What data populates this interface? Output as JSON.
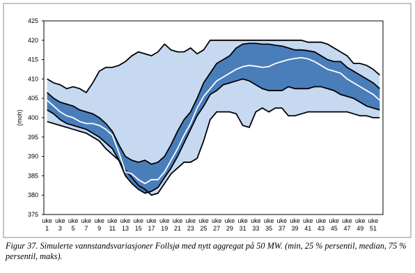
{
  "chart_data": {
    "type": "band",
    "caption": "Figur 37. Simulerte vannstandsvariasjoner Follsjø med nytt aggregat på 50 MW. (min, 25 % persentil, median, 75 % persentil, maks).",
    "ylabel": "(moh)",
    "categories": [
      "uke 1",
      null,
      "uke 3",
      null,
      "uke 5",
      null,
      "uke 7",
      null,
      "uke 9",
      null,
      "uke 11",
      null,
      "uke 13",
      null,
      "uke 15",
      null,
      "uke 17",
      null,
      "uke 19",
      null,
      "uke 21",
      null,
      "uke 23",
      null,
      "uke 25",
      null,
      "uke 27",
      null,
      "uke 29",
      null,
      "uke 31",
      null,
      "uke 33",
      null,
      "uke 35",
      null,
      "uke 37",
      null,
      "uke 39",
      null,
      "uke 41",
      null,
      "uke 43",
      null,
      "uke 45",
      null,
      "uke 47",
      null,
      "uke 49",
      null,
      "uke 51",
      null
    ],
    "ylim": [
      375,
      425
    ],
    "yticks": [
      375,
      380,
      385,
      390,
      395,
      400,
      405,
      410,
      415,
      420,
      425
    ],
    "band_colors": [
      "#c6d9f1",
      "#4a7ebb"
    ],
    "series": [
      {
        "color": "#000000",
        "values": [
          399,
          398.5,
          398,
          397.5,
          397,
          396.5,
          396,
          395,
          394,
          392,
          390.5,
          389,
          386.5,
          384.5,
          382.5,
          381.5,
          380,
          380.5,
          383,
          385.5,
          387,
          388.5,
          388.5,
          389.5,
          394,
          399.5,
          401.5,
          401.5,
          401.5,
          401,
          398,
          397.5,
          401.5,
          402.5,
          401.5,
          402.5,
          402.5,
          400.5,
          400.5,
          401,
          401.5,
          401.5,
          401.5,
          401.5,
          401.5,
          401.5,
          401.5,
          401,
          400.5,
          400.5,
          400,
          400
        ]
      },
      {
        "color": "#000000",
        "values": [
          402,
          401,
          399.5,
          398.5,
          398,
          397.5,
          397,
          396,
          395,
          393.5,
          392,
          389,
          385,
          383,
          381.5,
          380.5,
          381,
          382,
          384.5,
          387,
          390,
          393.5,
          397,
          400.5,
          403,
          406,
          407,
          408.5,
          409,
          409.5,
          410,
          409.5,
          408.5,
          407.5,
          407,
          407,
          407,
          408,
          407.5,
          407.5,
          407.5,
          408,
          408,
          407.5,
          407,
          406,
          405.5,
          405,
          404,
          403,
          402.5,
          402
        ]
      },
      {
        "color": "#ffffff",
        "values": [
          404.5,
          403,
          401.5,
          400.5,
          400,
          399,
          398.5,
          398.5,
          398,
          397,
          395.5,
          391,
          386,
          385.5,
          384,
          383,
          384,
          384,
          386,
          389,
          392,
          395.5,
          398.5,
          402.5,
          405.5,
          407.5,
          409.5,
          410.5,
          411.5,
          412.5,
          413.2,
          413.5,
          413.3,
          413,
          413.2,
          414,
          414.5,
          415,
          415.3,
          415.5,
          415.2,
          414.5,
          413.5,
          412.5,
          412,
          411.5,
          410,
          409,
          408,
          407,
          406,
          404.5
        ]
      },
      {
        "color": "#000000",
        "values": [
          406.5,
          405,
          404,
          403.5,
          403,
          402,
          401.5,
          401,
          400,
          398.5,
          396.5,
          393,
          390,
          389,
          388.5,
          389,
          388,
          388.5,
          390,
          393,
          396.5,
          399.5,
          401.5,
          405,
          409,
          411.5,
          414,
          415,
          416,
          418,
          419,
          419.2,
          419.2,
          419,
          419,
          418.7,
          418.5,
          418,
          417.5,
          417.5,
          417.3,
          417,
          416,
          415,
          414.5,
          414.5,
          413,
          412,
          411,
          410,
          409,
          407.5
        ]
      },
      {
        "color": "#000000",
        "values": [
          410,
          409,
          408.5,
          407.5,
          408,
          407.5,
          406.5,
          409,
          412,
          413,
          413,
          413.5,
          414.5,
          416,
          417,
          416.5,
          416,
          417,
          419,
          417.5,
          417,
          417,
          418,
          416.5,
          417.5,
          420,
          420,
          420,
          420,
          420,
          420,
          420,
          420,
          420,
          420,
          420,
          420,
          420,
          420,
          420,
          419.5,
          419.5,
          419.5,
          419,
          418,
          417,
          416,
          414,
          414,
          413.5,
          412.5,
          411
        ]
      }
    ]
  }
}
